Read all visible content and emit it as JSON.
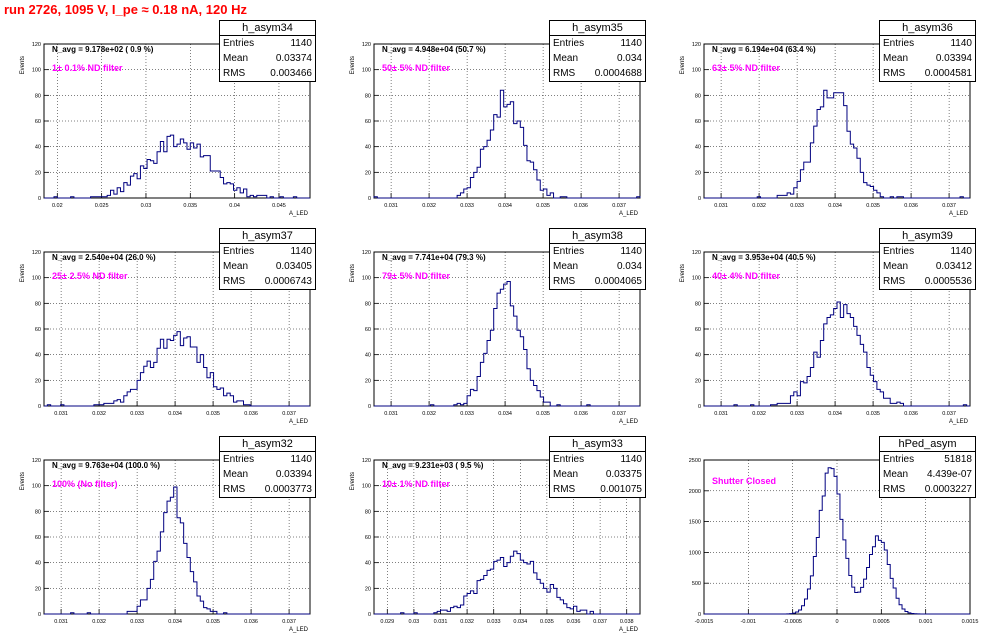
{
  "title": "run 2726,  1095 V, I_pe ≈ 0.18 nA, 120 Hz",
  "stat_labels": {
    "entries": "Entries",
    "mean": "Mean",
    "rms": "RMS"
  },
  "chart_data": [
    {
      "type": "histogram",
      "name": "h_asym34",
      "navg": "N_avg = 9.178e+02 ( 0.9 %)",
      "filter": "1± 0.1% ND filter",
      "stats": {
        "entries": "1140",
        "mean": "0.03374",
        "rms": "0.003466"
      },
      "ylabel": "Events",
      "xlabel": "A_LED",
      "ylim": [
        0,
        120
      ],
      "yticks": [
        "0",
        "20",
        "40",
        "60",
        "80",
        "100",
        "120"
      ],
      "xlim": [
        0.0185,
        0.0485
      ],
      "xticks": [
        {
          "v": 0.02,
          "t": "0.02"
        },
        {
          "v": 0.025,
          "t": "0.025"
        },
        {
          "v": 0.03,
          "t": "0.03"
        },
        {
          "v": 0.035,
          "t": "0.035"
        },
        {
          "v": 0.04,
          "t": "0.04"
        },
        {
          "v": 0.045,
          "t": "0.045"
        }
      ],
      "mean": 0.03374,
      "rms": 0.003466,
      "peak": 45,
      "entries": 1140,
      "bins": 80,
      "shape": "gauss",
      "seed": 34
    },
    {
      "type": "histogram",
      "name": "h_asym35",
      "navg": "N_avg = 4.948e+04 (50.7 %)",
      "filter": "50± 5% ND filter",
      "stats": {
        "entries": "1140",
        "mean": "0.034",
        "rms": "0.0004688"
      },
      "ylabel": "Events",
      "xlabel": "A_LED",
      "ylim": [
        0,
        120
      ],
      "yticks": [
        "0",
        "20",
        "40",
        "60",
        "80",
        "100",
        "120"
      ],
      "xlim": [
        0.03055,
        0.03755
      ],
      "xticks": [
        {
          "v": 0.031,
          "t": "0.031"
        },
        {
          "v": 0.032,
          "t": "0.032"
        },
        {
          "v": 0.033,
          "t": "0.033"
        },
        {
          "v": 0.034,
          "t": "0.034"
        },
        {
          "v": 0.035,
          "t": "0.035"
        },
        {
          "v": 0.036,
          "t": "0.036"
        },
        {
          "v": 0.037,
          "t": "0.037"
        }
      ],
      "mean": 0.034,
      "rms": 0.0004688,
      "peak": 76,
      "entries": 1140,
      "bins": 80,
      "shape": "gauss",
      "seed": 35
    },
    {
      "type": "histogram",
      "name": "h_asym36",
      "navg": "N_avg = 6.194e+04 (63.4 %)",
      "filter": "63± 5% ND filter",
      "stats": {
        "entries": "1140",
        "mean": "0.03394",
        "rms": "0.0004581"
      },
      "ylabel": "Events",
      "xlabel": "A_LED",
      "ylim": [
        0,
        120
      ],
      "yticks": [
        "0",
        "20",
        "40",
        "60",
        "80",
        "100",
        "120"
      ],
      "xlim": [
        0.03055,
        0.03755
      ],
      "xticks": [
        {
          "v": 0.031,
          "t": "0.031"
        },
        {
          "v": 0.032,
          "t": "0.032"
        },
        {
          "v": 0.033,
          "t": "0.033"
        },
        {
          "v": 0.034,
          "t": "0.034"
        },
        {
          "v": 0.035,
          "t": "0.035"
        },
        {
          "v": 0.036,
          "t": "0.036"
        },
        {
          "v": 0.037,
          "t": "0.037"
        }
      ],
      "mean": 0.03394,
      "rms": 0.0004581,
      "peak": 86,
      "entries": 1140,
      "bins": 80,
      "shape": "gauss",
      "seed": 36
    },
    {
      "type": "histogram",
      "name": "h_asym37",
      "navg": "N_avg = 2.540e+04 (26.0 %)",
      "filter": "25± 2.5% ND filter",
      "stats": {
        "entries": "1140",
        "mean": "0.03405",
        "rms": "0.0006743"
      },
      "ylabel": "Events",
      "xlabel": "A_LED",
      "ylim": [
        0,
        120
      ],
      "yticks": [
        "0",
        "20",
        "40",
        "60",
        "80",
        "100",
        "120"
      ],
      "xlim": [
        0.03055,
        0.03755
      ],
      "xticks": [
        {
          "v": 0.031,
          "t": "0.031"
        },
        {
          "v": 0.032,
          "t": "0.032"
        },
        {
          "v": 0.033,
          "t": "0.033"
        },
        {
          "v": 0.034,
          "t": "0.034"
        },
        {
          "v": 0.035,
          "t": "0.035"
        },
        {
          "v": 0.036,
          "t": "0.036"
        },
        {
          "v": 0.037,
          "t": "0.037"
        }
      ],
      "mean": 0.03405,
      "rms": 0.0006743,
      "peak": 56,
      "entries": 1140,
      "bins": 80,
      "shape": "gauss",
      "seed": 37
    },
    {
      "type": "histogram",
      "name": "h_asym38",
      "navg": "N_avg = 7.741e+04 (79.3 %)",
      "filter": "79± 5% ND filter",
      "stats": {
        "entries": "1140",
        "mean": "0.034",
        "rms": "0.0004065"
      },
      "ylabel": "Events",
      "xlabel": "A_LED",
      "ylim": [
        0,
        120
      ],
      "yticks": [
        "0",
        "20",
        "40",
        "60",
        "80",
        "100",
        "120"
      ],
      "xlim": [
        0.03055,
        0.03755
      ],
      "xticks": [
        {
          "v": 0.031,
          "t": "0.031"
        },
        {
          "v": 0.032,
          "t": "0.032"
        },
        {
          "v": 0.033,
          "t": "0.033"
        },
        {
          "v": 0.034,
          "t": "0.034"
        },
        {
          "v": 0.035,
          "t": "0.035"
        },
        {
          "v": 0.036,
          "t": "0.036"
        },
        {
          "v": 0.037,
          "t": "0.037"
        }
      ],
      "mean": 0.034,
      "rms": 0.0004065,
      "peak": 94,
      "entries": 1140,
      "bins": 80,
      "shape": "gauss",
      "seed": 38
    },
    {
      "type": "histogram",
      "name": "h_asym39",
      "navg": "N_avg = 3.953e+04 (40.5 %)",
      "filter": "40± 4% ND filter",
      "stats": {
        "entries": "1140",
        "mean": "0.03412",
        "rms": "0.0005536"
      },
      "ylabel": "Events",
      "xlabel": "A_LED",
      "ylim": [
        0,
        120
      ],
      "yticks": [
        "0",
        "20",
        "40",
        "60",
        "80",
        "100",
        "120"
      ],
      "xlim": [
        0.03055,
        0.03755
      ],
      "xticks": [
        {
          "v": 0.031,
          "t": "0.031"
        },
        {
          "v": 0.032,
          "t": "0.032"
        },
        {
          "v": 0.033,
          "t": "0.033"
        },
        {
          "v": 0.034,
          "t": "0.034"
        },
        {
          "v": 0.035,
          "t": "0.035"
        },
        {
          "v": 0.036,
          "t": "0.036"
        },
        {
          "v": 0.037,
          "t": "0.037"
        }
      ],
      "mean": 0.03412,
      "rms": 0.0005536,
      "peak": 74,
      "entries": 1140,
      "bins": 80,
      "shape": "gauss",
      "seed": 39
    },
    {
      "type": "histogram",
      "name": "h_asym32",
      "navg": "N_avg = 9.763e+04 (100.0 %)",
      "filter": "100% (No filter)",
      "stats": {
        "entries": "1140",
        "mean": "0.03394",
        "rms": "0.0003773"
      },
      "ylabel": "Events",
      "xlabel": "A_LED",
      "ylim": [
        0,
        120
      ],
      "yticks": [
        "0",
        "20",
        "40",
        "60",
        "80",
        "100",
        "120"
      ],
      "xlim": [
        0.03055,
        0.03755
      ],
      "xticks": [
        {
          "v": 0.031,
          "t": "0.031"
        },
        {
          "v": 0.032,
          "t": "0.032"
        },
        {
          "v": 0.033,
          "t": "0.033"
        },
        {
          "v": 0.034,
          "t": "0.034"
        },
        {
          "v": 0.035,
          "t": "0.035"
        },
        {
          "v": 0.036,
          "t": "0.036"
        },
        {
          "v": 0.037,
          "t": "0.037"
        }
      ],
      "mean": 0.03394,
      "rms": 0.0003773,
      "peak": 91,
      "entries": 1140,
      "bins": 80,
      "shape": "gauss",
      "seed": 32
    },
    {
      "type": "histogram",
      "name": "h_asym33",
      "navg": "N_avg = 9.231e+03 ( 9.5 %)",
      "filter": "10± 1% ND filter",
      "stats": {
        "entries": "1140",
        "mean": "0.03375",
        "rms": "0.001075"
      },
      "ylabel": "Events",
      "xlabel": "A_LED",
      "ylim": [
        0,
        120
      ],
      "yticks": [
        "0",
        "20",
        "40",
        "60",
        "80",
        "100",
        "120"
      ],
      "xlim": [
        0.0285,
        0.0385
      ],
      "xticks": [
        {
          "v": 0.029,
          "t": "0.029"
        },
        {
          "v": 0.03,
          "t": "0.03"
        },
        {
          "v": 0.031,
          "t": "0.031"
        },
        {
          "v": 0.032,
          "t": "0.032"
        },
        {
          "v": 0.033,
          "t": "0.033"
        },
        {
          "v": 0.034,
          "t": "0.034"
        },
        {
          "v": 0.035,
          "t": "0.035"
        },
        {
          "v": 0.036,
          "t": "0.036"
        },
        {
          "v": 0.037,
          "t": "0.037"
        },
        {
          "v": 0.038,
          "t": "0.038"
        }
      ],
      "mean": 0.03375,
      "rms": 0.001075,
      "peak": 45,
      "entries": 1140,
      "bins": 80,
      "shape": "gauss",
      "seed": 33
    },
    {
      "type": "histogram",
      "name": "hPed_asym",
      "navg": "",
      "filter": "Shutter Closed",
      "stats": {
        "entries": "51818",
        "mean": "4.439e-07",
        "rms": "0.0003227"
      },
      "ylabel": "",
      "xlabel": "",
      "ylim": [
        0,
        2500
      ],
      "yticks": [
        "0",
        "500",
        "1000",
        "1500",
        "2000",
        "2500"
      ],
      "xlim": [
        -0.0015,
        0.0015
      ],
      "xticks": [
        {
          "v": -0.0015,
          "t": "-0.0015"
        },
        {
          "v": -0.001,
          "t": "-0.001"
        },
        {
          "v": -0.0005,
          "t": "-0.0005"
        },
        {
          "v": 0,
          "t": "0"
        },
        {
          "v": 0.0005,
          "t": "0.0005"
        },
        {
          "v": 0.001,
          "t": "0.001"
        },
        {
          "v": 0.0015,
          "t": "0.0015"
        }
      ],
      "peaks": [
        {
          "mean": -7e-05,
          "sigma": 0.00013,
          "amp": 2400
        },
        {
          "mean": 0.00047,
          "sigma": 0.00012,
          "amp": 1250
        }
      ],
      "bins": 90,
      "shape": "double",
      "seed": 50
    }
  ]
}
